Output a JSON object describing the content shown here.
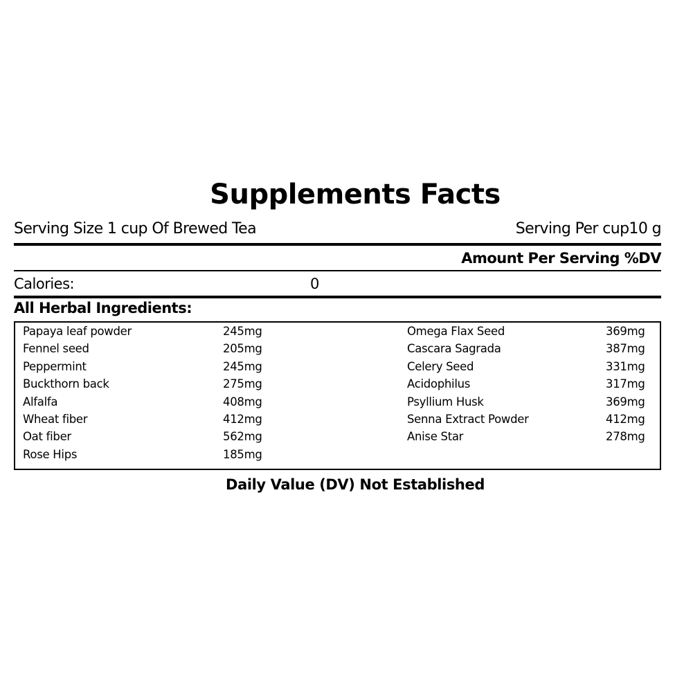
{
  "title": "Supplements Facts",
  "serving_size": "Serving Size 1 cup Of Brewed Tea",
  "serving_per": "Serving Per cup10 g",
  "amount_header": "Amount Per Serving %DV",
  "calories": {
    "label": "Calories:",
    "value": "0"
  },
  "ingredients_header": "All Herbal Ingredients:",
  "ingredients_left": [
    {
      "name": "Papaya leaf powder",
      "amount": "245mg"
    },
    {
      "name": "Fennel seed",
      "amount": "205mg"
    },
    {
      "name": "Peppermint",
      "amount": "245mg"
    },
    {
      "name": "Buckthorn back",
      "amount": "275mg"
    },
    {
      "name": "Alfalfa",
      "amount": "408mg"
    },
    {
      "name": "Wheat fiber",
      "amount": "412mg"
    },
    {
      "name": "Oat fiber",
      "amount": "562mg"
    },
    {
      "name": "Rose Hips",
      "amount": "185mg"
    }
  ],
  "ingredients_right": [
    {
      "name": "Omega Flax Seed",
      "amount": "369mg"
    },
    {
      "name": "Cascara Sagrada",
      "amount": "387mg"
    },
    {
      "name": "Celery Seed",
      "amount": "331mg"
    },
    {
      "name": "Acidophilus",
      "amount": "317mg"
    },
    {
      "name": "Psyllium Husk",
      "amount": "369mg"
    },
    {
      "name": "Senna Extract Powder",
      "amount": "412mg"
    },
    {
      "name": "Anise Star",
      "amount": "278mg"
    }
  ],
  "footer": "Daily Value (DV) Not Established"
}
